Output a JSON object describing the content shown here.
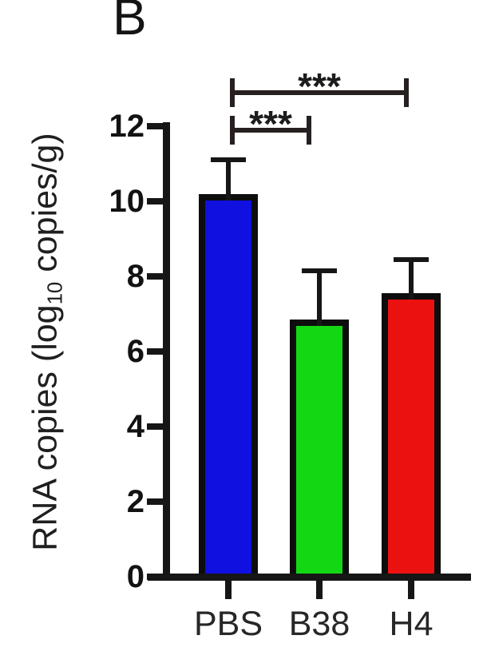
{
  "figure": {
    "panel_label": "B",
    "background": "#ffffff"
  },
  "chart_data": {
    "type": "bar",
    "title": "",
    "panel_label": "B",
    "categories": [
      "PBS",
      "B38",
      "H4"
    ],
    "values": [
      10.2,
      6.85,
      7.55
    ],
    "errors_plus": [
      0.9,
      1.3,
      0.9
    ],
    "error_bar_style": "upper-only",
    "bar_colors": [
      "#1010e0",
      "#12d712",
      "#ec1111"
    ],
    "bar_border_color": "#0d0d0d",
    "axis_color": "#161616",
    "text_color": "#1c1c1c",
    "xlabel": "",
    "ylabel_parts": {
      "prefix": "RNA copies (log",
      "sub": "10",
      "suffix": " copies/g)"
    },
    "ylabel_plain": "RNA copies (log10 copies/g)",
    "yticks": [
      0,
      2,
      4,
      6,
      8,
      10,
      12
    ],
    "ylim": [
      0,
      12
    ],
    "grid": false,
    "legend": null,
    "significance": [
      {
        "from": "PBS",
        "to": "B38",
        "label": "***"
      },
      {
        "from": "PBS",
        "to": "H4",
        "label": "***"
      }
    ]
  }
}
